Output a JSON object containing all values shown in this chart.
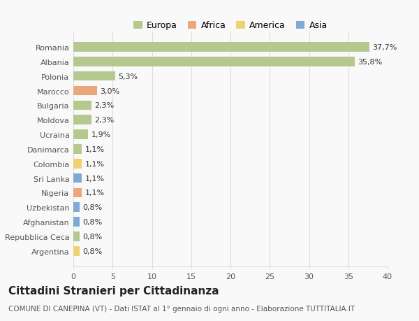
{
  "countries": [
    "Romania",
    "Albania",
    "Polonia",
    "Marocco",
    "Bulgaria",
    "Moldova",
    "Ucraina",
    "Danimarca",
    "Colombia",
    "Sri Lanka",
    "Nigeria",
    "Uzbekistan",
    "Afghanistan",
    "Repubblica Ceca",
    "Argentina"
  ],
  "values": [
    37.7,
    35.8,
    5.3,
    3.0,
    2.3,
    2.3,
    1.9,
    1.1,
    1.1,
    1.1,
    1.1,
    0.8,
    0.8,
    0.8,
    0.8
  ],
  "labels": [
    "37,7%",
    "35,8%",
    "5,3%",
    "3,0%",
    "2,3%",
    "2,3%",
    "1,9%",
    "1,1%",
    "1,1%",
    "1,1%",
    "1,1%",
    "0,8%",
    "0,8%",
    "0,8%",
    "0,8%"
  ],
  "continents": [
    "Europa",
    "Europa",
    "Europa",
    "Africa",
    "Europa",
    "Europa",
    "Europa",
    "Europa",
    "America",
    "Asia",
    "Africa",
    "Asia",
    "Asia",
    "Europa",
    "America"
  ],
  "continent_colors": {
    "Europa": "#b5c98e",
    "Africa": "#e8a87c",
    "America": "#f0d070",
    "Asia": "#7faad4"
  },
  "legend_items": [
    "Europa",
    "Africa",
    "America",
    "Asia"
  ],
  "legend_colors": [
    "#b5c98e",
    "#e8a87c",
    "#f0d070",
    "#7faad4"
  ],
  "title": "Cittadini Stranieri per Cittadinanza",
  "subtitle": "COMUNE DI CANEPINA (VT) - Dati ISTAT al 1° gennaio di ogni anno - Elaborazione TUTTITALIA.IT",
  "xlim": [
    0,
    40
  ],
  "xticks": [
    0,
    5,
    10,
    15,
    20,
    25,
    30,
    35,
    40
  ],
  "background_color": "#f9f9f9",
  "grid_color": "#dddddd",
  "bar_height": 0.65,
  "label_fontsize": 8,
  "tick_fontsize": 8,
  "title_fontsize": 11,
  "subtitle_fontsize": 7.5
}
